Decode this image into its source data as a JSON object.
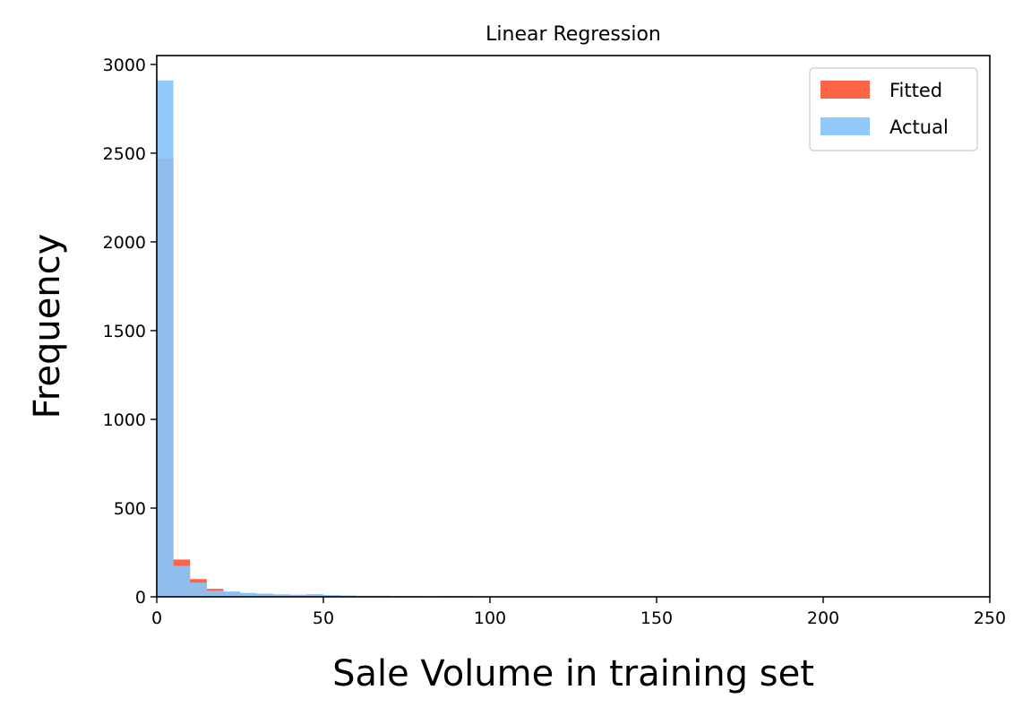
{
  "chart_data": {
    "type": "bar",
    "title": "Linear Regression",
    "xlabel": "Sale Volume in training set",
    "ylabel": "Frequency",
    "xlim": [
      0,
      250
    ],
    "ylim": [
      0,
      3050
    ],
    "xticks": [
      "0",
      "50",
      "100",
      "150",
      "200",
      "250"
    ],
    "yticks": [
      "0",
      "500",
      "1000",
      "1500",
      "2000",
      "2500",
      "3000"
    ],
    "bin_width": 5,
    "grid": false,
    "legend_position": "top-right",
    "series": [
      {
        "name": "Fitted",
        "color": "#ff6347",
        "opacity": 1.0,
        "bins": [
          {
            "x0": 0,
            "x1": 5,
            "value": 2470
          },
          {
            "x0": 5,
            "x1": 10,
            "value": 210
          },
          {
            "x0": 10,
            "x1": 15,
            "value": 100
          },
          {
            "x0": 15,
            "x1": 20,
            "value": 45
          },
          {
            "x0": 20,
            "x1": 25,
            "value": 28
          },
          {
            "x0": 25,
            "x1": 30,
            "value": 20
          },
          {
            "x0": 30,
            "x1": 35,
            "value": 15
          },
          {
            "x0": 35,
            "x1": 40,
            "value": 12
          },
          {
            "x0": 40,
            "x1": 45,
            "value": 10
          },
          {
            "x0": 45,
            "x1": 50,
            "value": 8
          },
          {
            "x0": 50,
            "x1": 55,
            "value": 6
          },
          {
            "x0": 55,
            "x1": 60,
            "value": 5
          },
          {
            "x0": 60,
            "x1": 65,
            "value": 3
          },
          {
            "x0": 65,
            "x1": 70,
            "value": 3
          },
          {
            "x0": 70,
            "x1": 75,
            "value": 2
          },
          {
            "x0": 75,
            "x1": 80,
            "value": 2
          },
          {
            "x0": 80,
            "x1": 85,
            "value": 1
          },
          {
            "x0": 85,
            "x1": 90,
            "value": 1
          },
          {
            "x0": 90,
            "x1": 95,
            "value": 1
          }
        ]
      },
      {
        "name": "Actual",
        "color": "#87c4fa",
        "opacity": 0.92,
        "bins": [
          {
            "x0": 0,
            "x1": 5,
            "value": 2910
          },
          {
            "x0": 5,
            "x1": 10,
            "value": 175
          },
          {
            "x0": 10,
            "x1": 15,
            "value": 80
          },
          {
            "x0": 15,
            "x1": 20,
            "value": 35
          },
          {
            "x0": 20,
            "x1": 25,
            "value": 30
          },
          {
            "x0": 25,
            "x1": 30,
            "value": 22
          },
          {
            "x0": 30,
            "x1": 35,
            "value": 18
          },
          {
            "x0": 35,
            "x1": 40,
            "value": 14
          },
          {
            "x0": 40,
            "x1": 45,
            "value": 12
          },
          {
            "x0": 45,
            "x1": 50,
            "value": 15
          },
          {
            "x0": 50,
            "x1": 55,
            "value": 10
          },
          {
            "x0": 55,
            "x1": 60,
            "value": 8
          },
          {
            "x0": 60,
            "x1": 65,
            "value": 6
          },
          {
            "x0": 65,
            "x1": 70,
            "value": 6
          },
          {
            "x0": 70,
            "x1": 75,
            "value": 5
          },
          {
            "x0": 75,
            "x1": 80,
            "value": 4
          },
          {
            "x0": 80,
            "x1": 85,
            "value": 3
          },
          {
            "x0": 85,
            "x1": 90,
            "value": 5
          },
          {
            "x0": 90,
            "x1": 95,
            "value": 4
          }
        ]
      }
    ]
  }
}
